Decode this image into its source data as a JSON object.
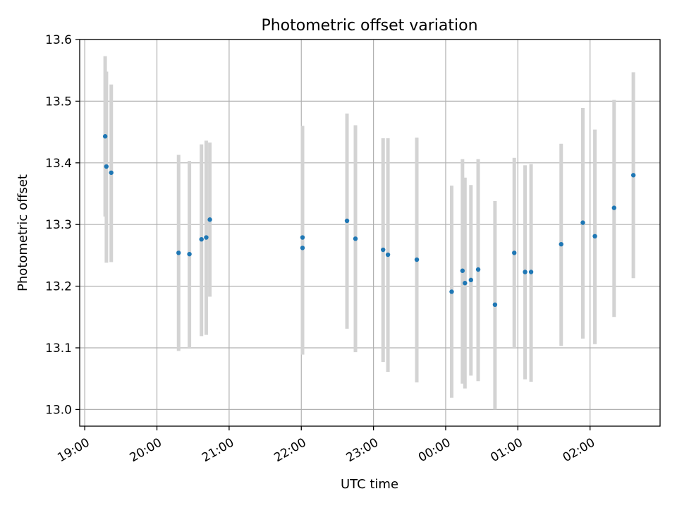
{
  "chart_data": {
    "type": "scatter",
    "title": "Photometric offset variation",
    "xlabel": "UTC time",
    "ylabel": "Photometric offset",
    "x_tick_labels": [
      "19:00",
      "20:00",
      "21:00",
      "22:00",
      "23:00",
      "00:00",
      "01:00",
      "02:00"
    ],
    "x_tick_hours": [
      0,
      1,
      2,
      3,
      4,
      5,
      6,
      7
    ],
    "x_axis_start_time": "19:00",
    "xlim_hours": [
      -0.07,
      7.97
    ],
    "ylim": [
      12.973,
      13.6
    ],
    "y_ticks": [
      13.0,
      13.1,
      13.2,
      13.3,
      13.4,
      13.5,
      13.6
    ],
    "y_tick_labels": [
      "13.0",
      "13.1",
      "13.2",
      "13.3",
      "13.4",
      "13.5",
      "13.6"
    ],
    "grid": true,
    "marker_color": "#1f77b4",
    "errorbar_color": "#d3d3d3",
    "points": [
      {
        "t": 0.283,
        "y": 13.443,
        "lo": 13.313,
        "hi": 13.573
      },
      {
        "t": 0.3,
        "y": 13.394,
        "lo": 13.238,
        "hi": 13.548
      },
      {
        "t": 0.367,
        "y": 13.384,
        "lo": 13.239,
        "hi": 13.527
      },
      {
        "t": 1.3,
        "y": 13.254,
        "lo": 13.095,
        "hi": 13.413
      },
      {
        "t": 1.45,
        "y": 13.252,
        "lo": 13.1,
        "hi": 13.403
      },
      {
        "t": 1.617,
        "y": 13.276,
        "lo": 13.119,
        "hi": 13.43
      },
      {
        "t": 1.683,
        "y": 13.279,
        "lo": 13.121,
        "hi": 13.436
      },
      {
        "t": 1.733,
        "y": 13.308,
        "lo": 13.183,
        "hi": 13.433
      },
      {
        "t": 3.017,
        "y": 13.262,
        "lo": 13.089,
        "hi": 13.435
      },
      {
        "t": 3.017,
        "y": 13.279,
        "lo": 13.098,
        "hi": 13.46
      },
      {
        "t": 3.633,
        "y": 13.306,
        "lo": 13.131,
        "hi": 13.48
      },
      {
        "t": 3.75,
        "y": 13.277,
        "lo": 13.093,
        "hi": 13.461
      },
      {
        "t": 4.133,
        "y": 13.259,
        "lo": 13.077,
        "hi": 13.44
      },
      {
        "t": 4.2,
        "y": 13.251,
        "lo": 13.061,
        "hi": 13.44
      },
      {
        "t": 4.6,
        "y": 13.243,
        "lo": 13.044,
        "hi": 13.441
      },
      {
        "t": 5.083,
        "y": 13.191,
        "lo": 13.019,
        "hi": 13.363
      },
      {
        "t": 5.233,
        "y": 13.225,
        "lo": 13.042,
        "hi": 13.406
      },
      {
        "t": 5.267,
        "y": 13.205,
        "lo": 13.034,
        "hi": 13.376
      },
      {
        "t": 5.35,
        "y": 13.21,
        "lo": 13.055,
        "hi": 13.364
      },
      {
        "t": 5.45,
        "y": 13.227,
        "lo": 13.046,
        "hi": 13.406
      },
      {
        "t": 5.683,
        "y": 13.17,
        "lo": 13.0,
        "hi": 13.338
      },
      {
        "t": 5.95,
        "y": 13.254,
        "lo": 13.1,
        "hi": 13.408
      },
      {
        "t": 6.1,
        "y": 13.223,
        "lo": 13.049,
        "hi": 13.396
      },
      {
        "t": 6.183,
        "y": 13.223,
        "lo": 13.045,
        "hi": 13.398
      },
      {
        "t": 6.6,
        "y": 13.268,
        "lo": 13.103,
        "hi": 13.431
      },
      {
        "t": 6.9,
        "y": 13.303,
        "lo": 13.115,
        "hi": 13.489
      },
      {
        "t": 7.067,
        "y": 13.281,
        "lo": 13.106,
        "hi": 13.454
      },
      {
        "t": 7.333,
        "y": 13.327,
        "lo": 13.15,
        "hi": 13.502
      },
      {
        "t": 7.6,
        "y": 13.38,
        "lo": 13.213,
        "hi": 13.547
      }
    ]
  }
}
